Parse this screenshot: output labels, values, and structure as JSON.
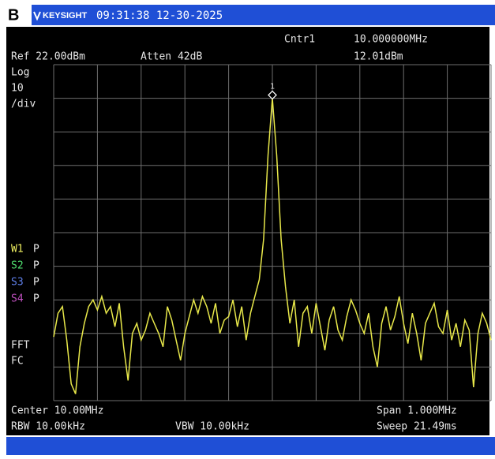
{
  "header": {
    "panel_letter": "B",
    "brand": "KEYSIGHT",
    "timestamp": "09:31:38 12-30-2025"
  },
  "readouts": {
    "marker_name": "Cntr1",
    "marker_freq": "10.000000MHz",
    "marker_level": "12.01dBm",
    "ref_level": "Ref 22.00dBm",
    "atten": "Atten 42dB",
    "scale_1": "Log",
    "scale_2": "10",
    "scale_3": "/div",
    "traces": [
      {
        "name": "W1",
        "mode": "P",
        "color": "#f0f060"
      },
      {
        "name": "S2",
        "mode": "P",
        "color": "#50e070"
      },
      {
        "name": "S3",
        "mode": "P",
        "color": "#5f7fe8"
      },
      {
        "name": "S4",
        "mode": "P",
        "color": "#c050c0"
      }
    ],
    "fft": "FFT",
    "fc": "FC",
    "center": "Center 10.00MHz",
    "span": "Span 1.000MHz",
    "rbw": "RBW 10.00kHz",
    "vbw": "VBW 10.00kHz",
    "sweep": "Sweep 21.49ms"
  },
  "chart_data": {
    "type": "line",
    "marker_label": "1",
    "xlim": [
      9.5,
      10.5
    ],
    "ylim": [
      -78,
      22
    ],
    "grid": true,
    "color": "#e8e84a",
    "x": [
      9.5,
      9.51,
      9.52,
      9.53,
      9.54,
      9.55,
      9.56,
      9.57,
      9.58,
      9.59,
      9.6,
      9.61,
      9.62,
      9.63,
      9.64,
      9.65,
      9.66,
      9.67,
      9.68,
      9.69,
      9.7,
      9.71,
      9.72,
      9.73,
      9.74,
      9.75,
      9.76,
      9.77,
      9.78,
      9.79,
      9.8,
      9.81,
      9.82,
      9.83,
      9.84,
      9.85,
      9.86,
      9.87,
      9.88,
      9.89,
      9.9,
      9.91,
      9.92,
      9.93,
      9.94,
      9.95,
      9.96,
      9.97,
      9.98,
      9.99,
      10.0,
      10.01,
      10.02,
      10.03,
      10.04,
      10.05,
      10.06,
      10.07,
      10.08,
      10.09,
      10.1,
      10.11,
      10.12,
      10.13,
      10.14,
      10.15,
      10.16,
      10.17,
      10.18,
      10.19,
      10.2,
      10.21,
      10.22,
      10.23,
      10.24,
      10.25,
      10.26,
      10.27,
      10.28,
      10.29,
      10.3,
      10.31,
      10.32,
      10.33,
      10.34,
      10.35,
      10.36,
      10.37,
      10.38,
      10.39,
      10.4,
      10.41,
      10.42,
      10.43,
      10.44,
      10.45,
      10.46,
      10.47,
      10.48,
      10.49,
      10.5
    ],
    "values": [
      -59,
      -52,
      -50,
      -60,
      -73,
      -76,
      -62,
      -55,
      -50,
      -48,
      -51,
      -47,
      -52,
      -50,
      -56,
      -49,
      -62,
      -72,
      -58,
      -55,
      -60,
      -57,
      -52,
      -55,
      -58,
      -62,
      -50,
      -54,
      -60,
      -66,
      -58,
      -53,
      -48,
      -52,
      -47,
      -50,
      -55,
      -49,
      -58,
      -54,
      -53,
      -48,
      -56,
      -50,
      -60,
      -52,
      -47,
      -42,
      -30,
      -5,
      12.01,
      -5,
      -30,
      -44,
      -55,
      -48,
      -62,
      -52,
      -50,
      -58,
      -49,
      -56,
      -63,
      -54,
      -50,
      -57,
      -60,
      -53,
      -48,
      -51,
      -55,
      -58,
      -52,
      -62,
      -68,
      -55,
      -50,
      -57,
      -53,
      -47,
      -55,
      -61,
      -52,
      -58,
      -66,
      -55,
      -52,
      -49,
      -56,
      -58,
      -51,
      -60,
      -55,
      -62,
      -54,
      -57,
      -74,
      -58,
      -52,
      -55,
      -60
    ]
  }
}
